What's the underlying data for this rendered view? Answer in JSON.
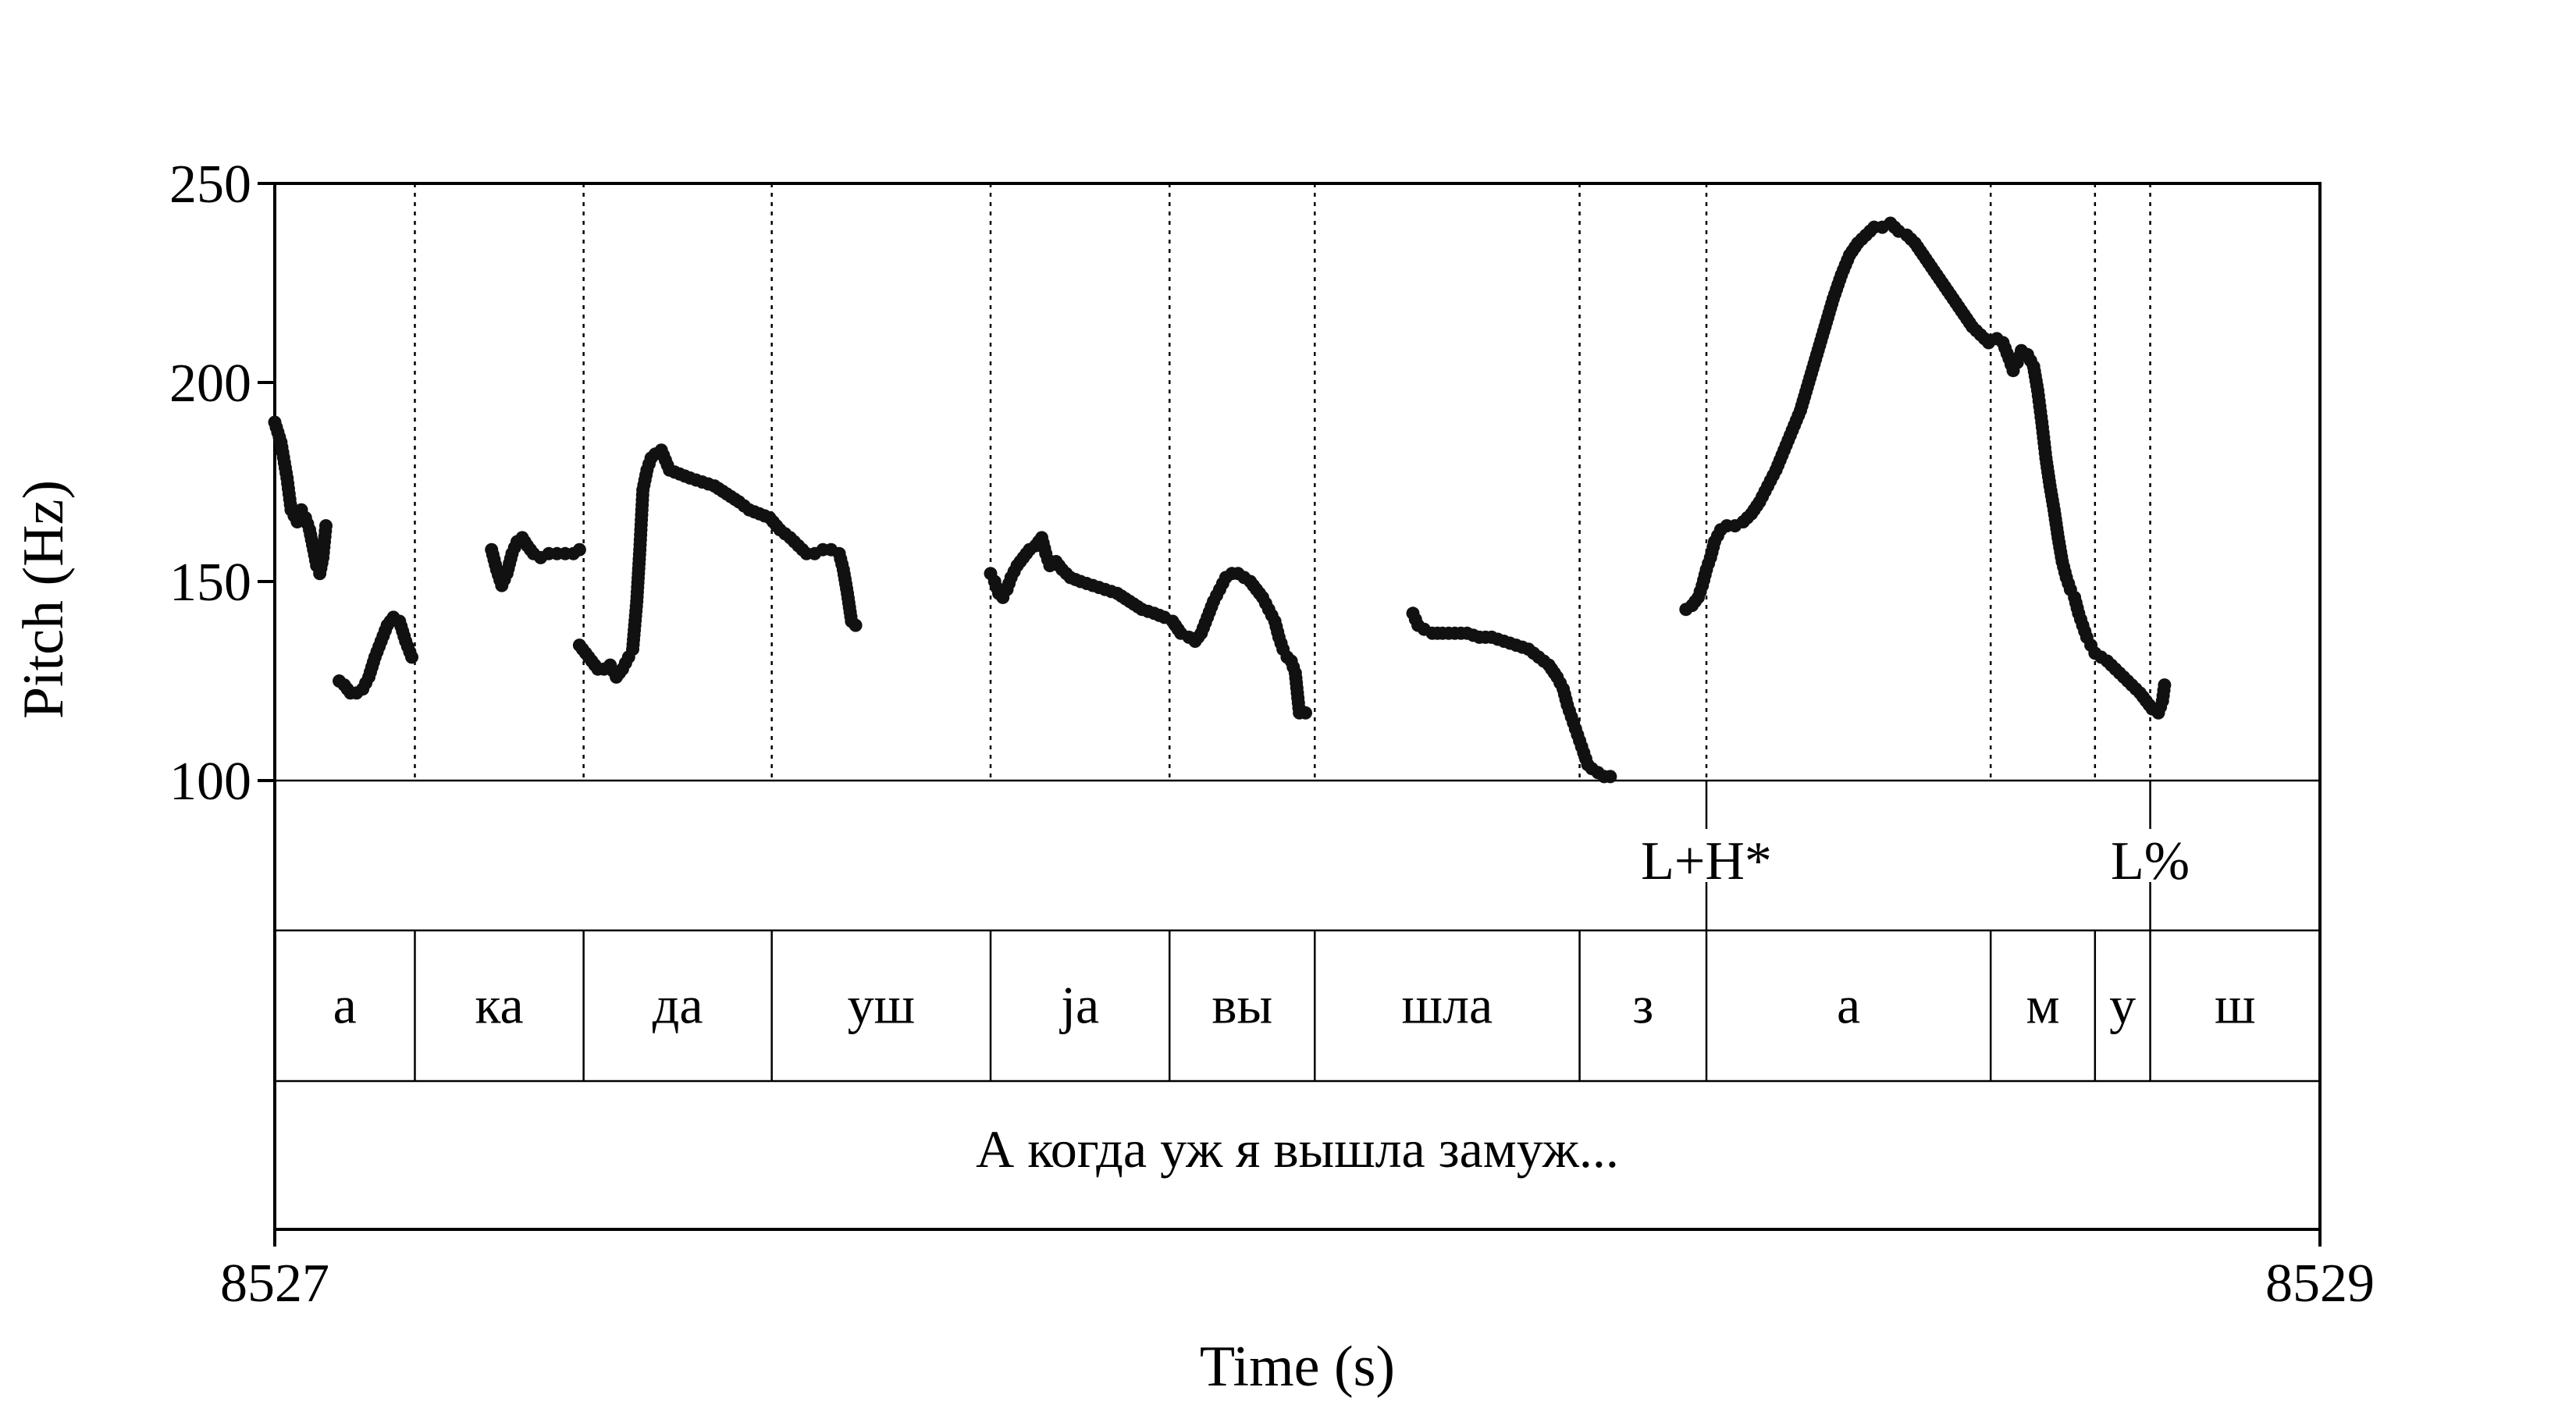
{
  "chart_data": {
    "type": "scatter",
    "xlabel": "Time (s)",
    "ylabel": "Pitch (Hz)",
    "xlim": [
      8527,
      8529
    ],
    "ylim": [
      100,
      250
    ],
    "x_ticks": [
      "8527",
      "8529"
    ],
    "y_ticks": [
      100,
      150,
      200,
      250
    ],
    "grid": false,
    "marker_color": "#111111",
    "segments": [
      {
        "label": "а",
        "start": 8527.0,
        "end": 8527.137
      },
      {
        "label": "ка",
        "start": 8527.137,
        "end": 8527.302
      },
      {
        "label": "да",
        "start": 8527.302,
        "end": 8527.486
      },
      {
        "label": "уш",
        "start": 8527.486,
        "end": 8527.7
      },
      {
        "label": "јa",
        "start": 8527.7,
        "end": 8527.875
      },
      {
        "label": "вы",
        "start": 8527.875,
        "end": 8528.017
      },
      {
        "label": "шла",
        "start": 8528.017,
        "end": 8528.276
      },
      {
        "label": "з",
        "start": 8528.276,
        "end": 8528.4
      },
      {
        "label": "а",
        "start": 8528.4,
        "end": 8528.678
      },
      {
        "label": "м",
        "start": 8528.678,
        "end": 8528.78
      },
      {
        "label": "у",
        "start": 8528.78,
        "end": 8528.834
      },
      {
        "label": "ш",
        "start": 8528.834,
        "end": 8529.0
      }
    ],
    "tones": [
      {
        "label": "L+H*",
        "time": 8528.4
      },
      {
        "label": "L%",
        "time": 8528.834
      }
    ],
    "sentence": "А когда уж я вышла замуж...",
    "pitch_curves": [
      [
        [
          8527.0,
          190
        ],
        [
          8527.006,
          185
        ],
        [
          8527.012,
          176
        ],
        [
          8527.016,
          168
        ],
        [
          8527.022,
          165
        ],
        [
          8527.026,
          168
        ],
        [
          8527.03,
          166
        ],
        [
          8527.034,
          163
        ],
        [
          8527.038,
          158
        ],
        [
          8527.041,
          154
        ],
        [
          8527.044,
          152
        ],
        [
          8527.047,
          156
        ],
        [
          8527.05,
          164
        ]
      ],
      [
        [
          8527.063,
          125
        ],
        [
          8527.068,
          124
        ],
        [
          8527.074,
          122
        ],
        [
          8527.08,
          122
        ],
        [
          8527.086,
          123
        ],
        [
          8527.092,
          126
        ],
        [
          8527.098,
          131
        ],
        [
          8527.104,
          135
        ],
        [
          8527.11,
          139
        ],
        [
          8527.116,
          141
        ],
        [
          8527.122,
          140
        ],
        [
          8527.128,
          135
        ],
        [
          8527.134,
          131
        ]
      ],
      [
        [
          8527.212,
          158
        ],
        [
          8527.217,
          153
        ],
        [
          8527.222,
          149
        ],
        [
          8527.227,
          152
        ],
        [
          8527.232,
          157
        ],
        [
          8527.237,
          160
        ],
        [
          8527.242,
          161
        ],
        [
          8527.247,
          159
        ],
        [
          8527.253,
          157
        ],
        [
          8527.26,
          156
        ],
        [
          8527.268,
          157
        ],
        [
          8527.276,
          157
        ],
        [
          8527.284,
          157
        ],
        [
          8527.292,
          157
        ],
        [
          8527.298,
          158
        ]
      ],
      [
        [
          8527.298,
          134
        ],
        [
          8527.304,
          132
        ],
        [
          8527.31,
          130
        ],
        [
          8527.316,
          128
        ],
        [
          8527.322,
          128
        ],
        [
          8527.328,
          129
        ],
        [
          8527.334,
          126
        ],
        [
          8527.34,
          128
        ],
        [
          8527.346,
          131
        ],
        [
          8527.35,
          133
        ],
        [
          8527.354,
          145
        ],
        [
          8527.357,
          158
        ],
        [
          8527.36,
          173
        ],
        [
          8527.364,
          178
        ],
        [
          8527.368,
          181
        ],
        [
          8527.372,
          182
        ],
        [
          8527.378,
          183
        ],
        [
          8527.386,
          178
        ],
        [
          8527.396,
          177
        ],
        [
          8527.406,
          176
        ],
        [
          8527.418,
          175
        ],
        [
          8527.43,
          174
        ],
        [
          8527.442,
          172
        ],
        [
          8527.454,
          170
        ],
        [
          8527.464,
          168
        ],
        [
          8527.474,
          167
        ],
        [
          8527.484,
          166
        ],
        [
          8527.494,
          163
        ],
        [
          8527.504,
          161
        ],
        [
          8527.512,
          159
        ],
        [
          8527.52,
          157
        ],
        [
          8527.528,
          157
        ],
        [
          8527.536,
          158
        ],
        [
          8527.544,
          158
        ],
        [
          8527.552,
          157
        ],
        [
          8527.556,
          153
        ],
        [
          8527.56,
          147
        ],
        [
          8527.564,
          140
        ],
        [
          8527.568,
          139
        ]
      ],
      [
        [
          8527.7,
          152
        ],
        [
          8527.704,
          150
        ],
        [
          8527.708,
          147
        ],
        [
          8527.712,
          146
        ],
        [
          8527.716,
          148
        ],
        [
          8527.72,
          151
        ],
        [
          8527.726,
          154
        ],
        [
          8527.732,
          156
        ],
        [
          8527.738,
          158
        ],
        [
          8527.744,
          159
        ],
        [
          8527.75,
          161
        ],
        [
          8527.754,
          157
        ],
        [
          8527.758,
          154
        ],
        [
          8527.764,
          155
        ],
        [
          8527.77,
          153
        ],
        [
          8527.778,
          151
        ],
        [
          8527.788,
          150
        ],
        [
          8527.8,
          149
        ],
        [
          8527.812,
          148
        ],
        [
          8527.824,
          147
        ],
        [
          8527.836,
          145
        ],
        [
          8527.848,
          143
        ],
        [
          8527.86,
          142
        ],
        [
          8527.87,
          141
        ],
        [
          8527.878,
          140
        ],
        [
          8527.886,
          137
        ],
        [
          8527.894,
          136
        ],
        [
          8527.9,
          135
        ],
        [
          8527.906,
          137
        ],
        [
          8527.912,
          141
        ],
        [
          8527.918,
          145
        ],
        [
          8527.924,
          148
        ],
        [
          8527.93,
          151
        ],
        [
          8527.936,
          152
        ],
        [
          8527.942,
          152
        ],
        [
          8527.948,
          151
        ],
        [
          8527.954,
          150
        ],
        [
          8527.96,
          148
        ],
        [
          8527.966,
          146
        ],
        [
          8527.972,
          143
        ],
        [
          8527.978,
          140
        ],
        [
          8527.982,
          136
        ],
        [
          8527.986,
          133
        ],
        [
          8527.99,
          131
        ],
        [
          8527.994,
          130
        ],
        [
          8527.998,
          127
        ],
        [
          8528.002,
          117
        ],
        [
          8528.008,
          117
        ]
      ],
      [
        [
          8528.113,
          142
        ],
        [
          8528.118,
          139
        ],
        [
          8528.124,
          138
        ],
        [
          8528.132,
          137
        ],
        [
          8528.142,
          137
        ],
        [
          8528.154,
          137
        ],
        [
          8528.166,
          137
        ],
        [
          8528.178,
          136
        ],
        [
          8528.19,
          136
        ],
        [
          8528.202,
          135
        ],
        [
          8528.214,
          134
        ],
        [
          8528.226,
          133
        ],
        [
          8528.236,
          131
        ],
        [
          8528.246,
          129
        ],
        [
          8528.254,
          126
        ],
        [
          8528.26,
          123
        ],
        [
          8528.264,
          119
        ],
        [
          8528.268,
          116
        ],
        [
          8528.272,
          113
        ],
        [
          8528.276,
          110
        ],
        [
          8528.28,
          107
        ],
        [
          8528.284,
          104
        ],
        [
          8528.288,
          103
        ],
        [
          8528.294,
          102
        ],
        [
          8528.3,
          101
        ],
        [
          8528.306,
          101
        ]
      ],
      [
        [
          8528.38,
          143
        ],
        [
          8528.386,
          144
        ],
        [
          8528.392,
          146
        ],
        [
          8528.396,
          149
        ],
        [
          8528.4,
          153
        ],
        [
          8528.404,
          156
        ],
        [
          8528.408,
          160
        ],
        [
          8528.414,
          163
        ],
        [
          8528.42,
          164
        ],
        [
          8528.428,
          164
        ],
        [
          8528.436,
          165
        ],
        [
          8528.444,
          167
        ],
        [
          8528.452,
          170
        ],
        [
          8528.46,
          174
        ],
        [
          8528.468,
          178
        ],
        [
          8528.476,
          183
        ],
        [
          8528.484,
          188
        ],
        [
          8528.492,
          193
        ],
        [
          8528.5,
          200
        ],
        [
          8528.508,
          207
        ],
        [
          8528.516,
          214
        ],
        [
          8528.524,
          221
        ],
        [
          8528.532,
          227
        ],
        [
          8528.54,
          232
        ],
        [
          8528.548,
          235
        ],
        [
          8528.556,
          237
        ],
        [
          8528.564,
          239
        ],
        [
          8528.572,
          239
        ],
        [
          8528.58,
          240
        ],
        [
          8528.588,
          238
        ],
        [
          8528.596,
          237
        ],
        [
          8528.604,
          235
        ],
        [
          8528.612,
          232
        ],
        [
          8528.62,
          229
        ],
        [
          8528.628,
          226
        ],
        [
          8528.636,
          223
        ],
        [
          8528.644,
          220
        ],
        [
          8528.652,
          217
        ],
        [
          8528.66,
          214
        ],
        [
          8528.668,
          212
        ],
        [
          8528.676,
          210
        ],
        [
          8528.684,
          211
        ],
        [
          8528.69,
          210
        ],
        [
          8528.696,
          206
        ],
        [
          8528.7,
          203
        ],
        [
          8528.704,
          205
        ],
        [
          8528.708,
          208
        ],
        [
          8528.714,
          207
        ],
        [
          8528.72,
          204
        ],
        [
          8528.724,
          198
        ],
        [
          8528.728,
          190
        ],
        [
          8528.732,
          181
        ],
        [
          8528.736,
          174
        ],
        [
          8528.74,
          168
        ],
        [
          8528.744,
          161
        ],
        [
          8528.748,
          155
        ],
        [
          8528.752,
          151
        ],
        [
          8528.756,
          148
        ],
        [
          8528.76,
          146
        ],
        [
          8528.764,
          142
        ],
        [
          8528.768,
          139
        ],
        [
          8528.772,
          136
        ],
        [
          8528.776,
          134
        ],
        [
          8528.78,
          132
        ],
        [
          8528.786,
          131
        ],
        [
          8528.792,
          130
        ],
        [
          8528.8,
          128
        ],
        [
          8528.808,
          126
        ],
        [
          8528.816,
          124
        ],
        [
          8528.824,
          122
        ],
        [
          8528.83,
          120
        ],
        [
          8528.836,
          118
        ],
        [
          8528.842,
          117
        ],
        [
          8528.846,
          120
        ],
        [
          8528.848,
          124
        ]
      ]
    ]
  }
}
